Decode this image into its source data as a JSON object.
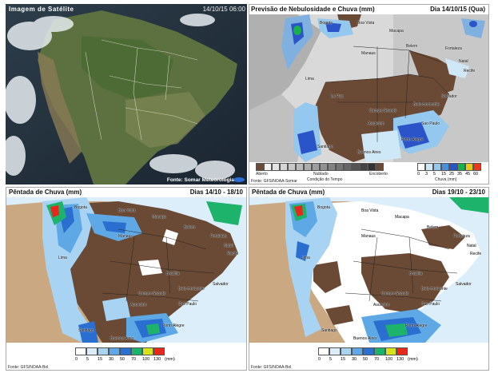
{
  "satellite": {
    "title": "Imagem de Satélite",
    "timestamp": "14/10/15 06:00",
    "credit": "Fonte: Somar Meteorologia"
  },
  "forecast": {
    "title": "Previsão de Nebulosidade e Chuva (mm)",
    "date": "Dia 14/10/15 (Qua)",
    "source": "Fonte: GFS/NOAA-Somar",
    "cloud_legend": {
      "clear": "Aberto",
      "cloudy": "Nublado",
      "overcast": "Encoberto",
      "caption": "Condição do Tempo"
    },
    "rain_ticks": [
      "0",
      "3",
      "5",
      "15",
      "25",
      "35",
      "45",
      "60"
    ],
    "rain_caption": "Chuva (mm)",
    "rain_colors": [
      "#ffffff",
      "#cfe8f7",
      "#94c8ee",
      "#4a90d9",
      "#2a54c8",
      "#19b04a",
      "#e8c81a",
      "#e83a1a"
    ],
    "cities": [
      "Bogota",
      "Boa Vista",
      "Macapa",
      "Belem",
      "Manaus",
      "Fortaleza",
      "Natal",
      "Recife",
      "Lima",
      "La Paz",
      "Salvador",
      "Campo Grande",
      "Belo Horizonte",
      "Asuncion",
      "Sao Paulo",
      "Santiago",
      "Buenos Aires",
      "Porto Alegre"
    ]
  },
  "pentad1": {
    "title": "Pêntada de Chuva (mm)",
    "date": "Dias 14/10 - 18/10",
    "source": "Fonte: GFS/NOAA-Bol",
    "ticks": [
      "0",
      "5",
      "15",
      "30",
      "50",
      "70",
      "100",
      "130",
      "(mm)"
    ],
    "colors": [
      "#ffffff",
      "#dbeefa",
      "#a9d3f2",
      "#5ea8e6",
      "#2a6fd0",
      "#1eb36a",
      "#d9e21a",
      "#e8281a"
    ],
    "cities": [
      "Bogota",
      "Boa Vista",
      "Macapa",
      "Belem",
      "Manaus",
      "Fortaleza",
      "Natal",
      "Recife",
      "Brasilia",
      "Salvador",
      "Campo Grande",
      "Belo Horizonte",
      "Asuncion",
      "Sao Paulo",
      "Santiago",
      "Buenos Aires",
      "Porto Alegre",
      "Lima"
    ]
  },
  "pentad2": {
    "title": "Pêntada de Chuva (mm)",
    "date": "Dias 19/10 - 23/10",
    "source": "Fonte: GFS/NOAA-Bol",
    "ticks": [
      "0",
      "5",
      "15",
      "30",
      "50",
      "70",
      "100",
      "130",
      "(mm)"
    ],
    "colors": [
      "#ffffff",
      "#dbeefa",
      "#a9d3f2",
      "#5ea8e6",
      "#2a6fd0",
      "#1eb36a",
      "#d9e21a",
      "#e8281a"
    ],
    "cities": [
      "Bogota",
      "Boa Vista",
      "Macapa",
      "Belem",
      "Manaus",
      "Fortaleza",
      "Natal",
      "Recife",
      "Brasilia",
      "Salvador",
      "Campo Grande",
      "Belo Horizonte",
      "Asuncion",
      "Sao Paulo",
      "Santiago",
      "Buenos Aires",
      "Porto Alegre",
      "Lima"
    ]
  }
}
